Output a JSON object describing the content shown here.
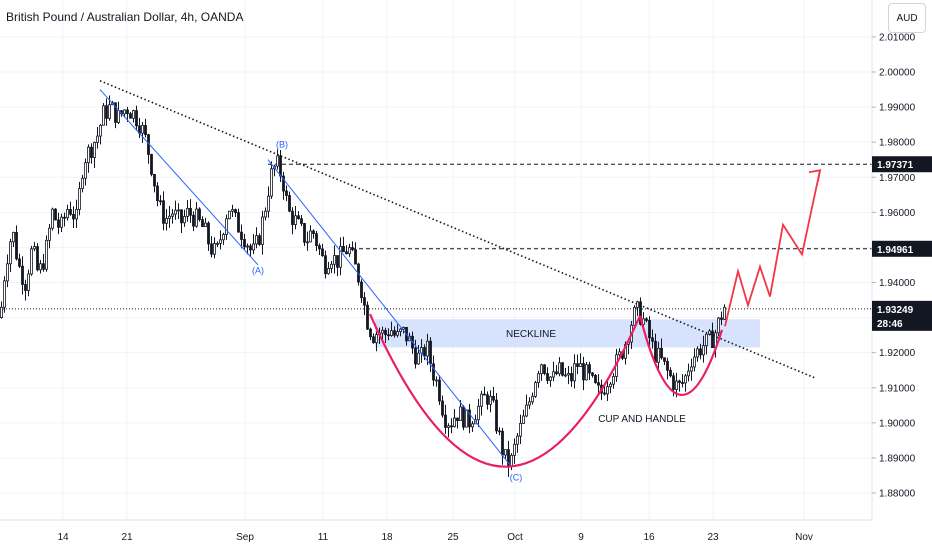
{
  "header": {
    "title": "British Pound / Australian Dollar, 4h, OANDA",
    "currency": "AUD"
  },
  "chart_data": {
    "type": "candlestick",
    "ylim": [
      1.875,
      2.016
    ],
    "y_ticks": [
      1.88,
      1.89,
      1.9,
      1.91,
      1.92,
      1.93,
      1.94,
      1.95,
      1.96,
      1.97,
      1.98,
      1.99,
      2.0,
      2.01
    ],
    "y_tick_labels": [
      "1.88000",
      "1.89000",
      "1.90000",
      "1.91000",
      "1.92000",
      "1.93000",
      "1.94000",
      "1.95000",
      "1.96000",
      "1.97000",
      "1.98000",
      "1.99000",
      "2.00000",
      "2.01000"
    ],
    "x_tick_labels": [
      "14",
      "21",
      "Sep",
      "11",
      "18",
      "25",
      "Oct",
      "9",
      "16",
      "23",
      "Nov"
    ],
    "price_labels": [
      {
        "text": "1.97371",
        "value": 1.97371,
        "style": "dark"
      },
      {
        "text": "1.94961",
        "value": 1.94961,
        "style": "dark"
      },
      {
        "text": "1.93249",
        "value": 1.93249,
        "style": "dark",
        "countdown": "28:46"
      }
    ],
    "current_price": 1.93249,
    "countdown": "28:46",
    "annotations": {
      "neckline": "NECKLINE",
      "pattern": "CUP AND HANDLE",
      "waves": [
        "(A)",
        "(B)",
        "(C)"
      ]
    },
    "anchors": [
      [
        0,
        1.93
      ],
      [
        5,
        1.945
      ],
      [
        12,
        1.955
      ],
      [
        18,
        1.945
      ],
      [
        25,
        1.94
      ],
      [
        32,
        1.95
      ],
      [
        38,
        1.942
      ],
      [
        45,
        1.948
      ],
      [
        52,
        1.96
      ],
      [
        60,
        1.955
      ],
      [
        68,
        1.962
      ],
      [
        76,
        1.958
      ],
      [
        83,
        1.975
      ],
      [
        90,
        1.978
      ],
      [
        97,
        1.982
      ],
      [
        103,
        1.988
      ],
      [
        110,
        1.99
      ],
      [
        118,
        1.987
      ],
      [
        126,
        1.99
      ],
      [
        134,
        1.988
      ],
      [
        140,
        1.985
      ],
      [
        146,
        1.98
      ],
      [
        152,
        1.972
      ],
      [
        158,
        1.962
      ],
      [
        165,
        1.958
      ],
      [
        172,
        1.96
      ],
      [
        180,
        1.957
      ],
      [
        188,
        1.96
      ],
      [
        196,
        1.958
      ],
      [
        204,
        1.955
      ],
      [
        210,
        1.95
      ],
      [
        216,
        1.948
      ],
      [
        222,
        1.955
      ],
      [
        228,
        1.962
      ],
      [
        234,
        1.958
      ],
      [
        240,
        1.955
      ],
      [
        246,
        1.952
      ],
      [
        252,
        1.948
      ],
      [
        258,
        1.952
      ],
      [
        264,
        1.96
      ],
      [
        270,
        1.97
      ],
      [
        276,
        1.974
      ],
      [
        282,
        1.97
      ],
      [
        288,
        1.96
      ],
      [
        294,
        1.958
      ],
      [
        300,
        1.955
      ],
      [
        306,
        1.952
      ],
      [
        312,
        1.955
      ],
      [
        318,
        1.95
      ],
      [
        324,
        1.945
      ],
      [
        330,
        1.948
      ],
      [
        336,
        1.946
      ],
      [
        342,
        1.948
      ],
      [
        348,
        1.95
      ],
      [
        354,
        1.945
      ],
      [
        360,
        1.94
      ],
      [
        366,
        1.93
      ],
      [
        372,
        1.925
      ],
      [
        378,
        1.926
      ],
      [
        384,
        1.925
      ],
      [
        390,
        1.927
      ],
      [
        396,
        1.924
      ],
      [
        402,
        1.926
      ],
      [
        408,
        1.924
      ],
      [
        414,
        1.92
      ],
      [
        420,
        1.918
      ],
      [
        426,
        1.922
      ],
      [
        432,
        1.915
      ],
      [
        438,
        1.91
      ],
      [
        444,
        1.902
      ],
      [
        450,
        1.9
      ],
      [
        456,
        1.903
      ],
      [
        462,
        1.902
      ],
      [
        468,
        1.9
      ],
      [
        474,
        1.903
      ],
      [
        480,
        1.905
      ],
      [
        486,
        1.908
      ],
      [
        492,
        1.905
      ],
      [
        498,
        1.897
      ],
      [
        504,
        1.89
      ],
      [
        510,
        1.888
      ],
      [
        516,
        1.895
      ],
      [
        522,
        1.9
      ],
      [
        528,
        1.905
      ],
      [
        534,
        1.912
      ],
      [
        540,
        1.918
      ],
      [
        546,
        1.915
      ],
      [
        552,
        1.912
      ],
      [
        558,
        1.915
      ],
      [
        564,
        1.913
      ],
      [
        570,
        1.912
      ],
      [
        576,
        1.917
      ],
      [
        582,
        1.915
      ],
      [
        588,
        1.913
      ],
      [
        594,
        1.91
      ],
      [
        600,
        1.908
      ],
      [
        606,
        1.912
      ],
      [
        612,
        1.915
      ],
      [
        618,
        1.918
      ],
      [
        624,
        1.922
      ],
      [
        630,
        1.928
      ],
      [
        636,
        1.932
      ],
      [
        642,
        1.93
      ],
      [
        648,
        1.925
      ],
      [
        654,
        1.92
      ],
      [
        660,
        1.918
      ],
      [
        666,
        1.915
      ],
      [
        672,
        1.912
      ],
      [
        678,
        1.91
      ],
      [
        684,
        1.912
      ],
      [
        690,
        1.918
      ],
      [
        696,
        1.92
      ],
      [
        702,
        1.922
      ],
      [
        708,
        1.923
      ],
      [
        714,
        1.925
      ],
      [
        720,
        1.93
      ],
      [
        724,
        1.933
      ]
    ],
    "trendlines": {
      "dotted_resistance": [
        [
          100,
          1.9975
        ],
        [
          815,
          1.9128
        ]
      ],
      "impulse_lines": [
        [
          [
            100,
            1.995
          ],
          [
            258,
            1.945
          ]
        ],
        [
          [
            268,
            1.975
          ],
          [
            510,
            1.888
          ]
        ]
      ]
    },
    "horizontal_levels": [
      1.97371,
      1.94961,
      1.93249
    ],
    "neckline_zone": [
      1.9215,
      1.9295
    ],
    "cup_curve": [
      [
        370,
        1.931
      ],
      [
        505,
        1.8875
      ],
      [
        640,
        1.9305
      ]
    ],
    "handle_curve": [
      [
        640,
        1.9305
      ],
      [
        680,
        1.908
      ],
      [
        722,
        1.9265
      ]
    ],
    "projection_path": [
      [
        725,
        1.9275
      ],
      [
        738,
        1.9432
      ],
      [
        748,
        1.9335
      ],
      [
        760,
        1.9445
      ],
      [
        770,
        1.936
      ],
      [
        783,
        1.9565
      ],
      [
        802,
        1.948
      ],
      [
        820,
        1.972
      ]
    ]
  }
}
